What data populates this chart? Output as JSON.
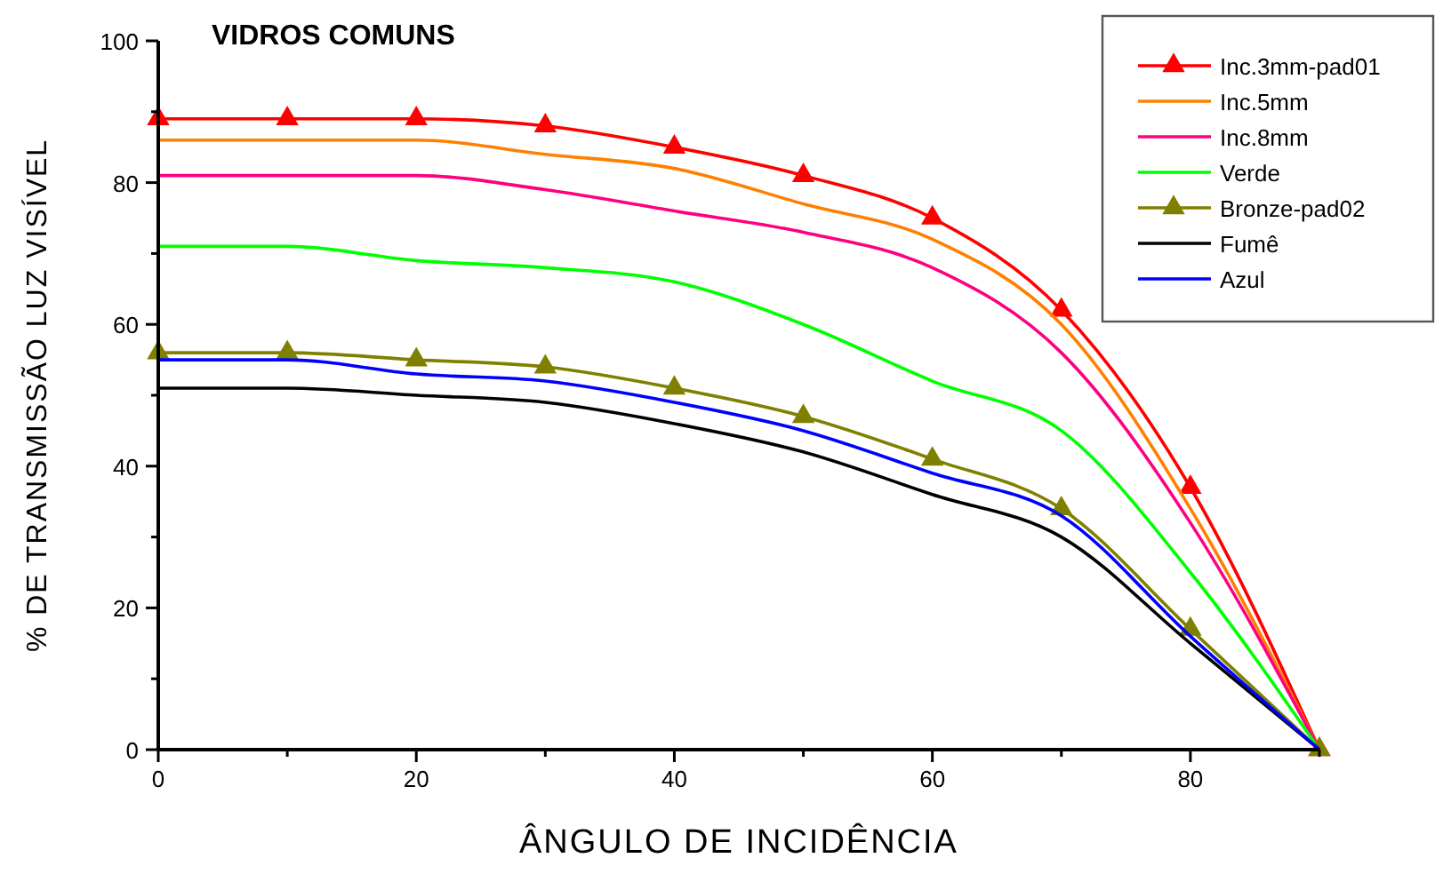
{
  "chart_data": {
    "type": "line",
    "title": "VIDROS COMUNS",
    "xlabel": "ÂNGULO DE INCIDÊNCIA",
    "ylabel": "% DE TRANSMISSÃO LUZ VISÍVEL",
    "x": [
      0,
      10,
      20,
      30,
      40,
      50,
      60,
      70,
      80,
      90
    ],
    "xlim": [
      0,
      90
    ],
    "ylim": [
      0,
      100
    ],
    "xticks": [
      0,
      {
        "value": 10,
        "label": null
      },
      20,
      {
        "value": 30,
        "label": null
      },
      40,
      {
        "value": 50,
        "label": null
      },
      60,
      {
        "value": 70,
        "label": null
      },
      80,
      {
        "value": 90,
        "label": null
      }
    ],
    "yticks": [
      0,
      {
        "value": 10,
        "label": null
      },
      20,
      {
        "value": 30,
        "label": null
      },
      40,
      {
        "value": 50,
        "label": null
      },
      60,
      {
        "value": 70,
        "label": null
      },
      80,
      {
        "value": 90,
        "label": null
      },
      100
    ],
    "grid": false,
    "legend": "top right",
    "line_style": "solid",
    "series": [
      {
        "name": "Inc.3mm-pad01",
        "color": "#ff0000",
        "marker": "triangle",
        "values": [
          89,
          89,
          89,
          88,
          85,
          81,
          75,
          62,
          37,
          0
        ]
      },
      {
        "name": "Inc.5mm",
        "color": "#ff8000",
        "marker": "none",
        "values": [
          86,
          86,
          86,
          84,
          82,
          77,
          72,
          60,
          34,
          0
        ]
      },
      {
        "name": "Inc.8mm",
        "color": "#ff0080",
        "marker": "none",
        "values": [
          81,
          81,
          81,
          79,
          76,
          73,
          68,
          56,
          32,
          0
        ]
      },
      {
        "name": "Verde",
        "color": "#00ff00",
        "marker": "none",
        "values": [
          71,
          71,
          69,
          68,
          66,
          60,
          52,
          45,
          25,
          0
        ]
      },
      {
        "name": "Bronze-pad02",
        "color": "#808000",
        "marker": "triangle",
        "values": [
          56,
          56,
          55,
          54,
          51,
          47,
          41,
          34,
          17,
          0
        ]
      },
      {
        "name": "Fumê",
        "color": "#000000",
        "marker": "none",
        "values": [
          51,
          51,
          50,
          49,
          46,
          42,
          36,
          30,
          15,
          0
        ]
      },
      {
        "name": "Azul",
        "color": "#0000ff",
        "marker": "none",
        "values": [
          55,
          55,
          53,
          52,
          49,
          45,
          39,
          33,
          16,
          0
        ]
      }
    ]
  }
}
